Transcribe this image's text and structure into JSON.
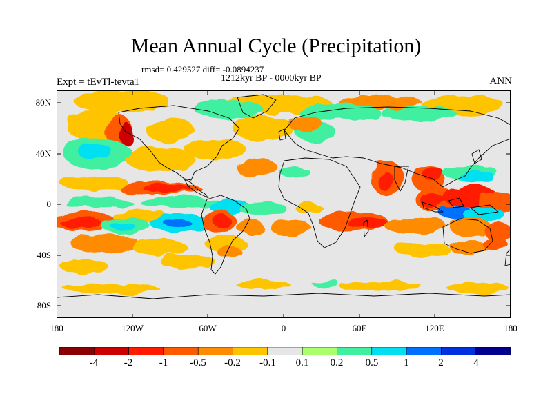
{
  "plot": {
    "title": "Mean Annual Cycle (Precipitation)",
    "stats": "rmsd= 0.429527 diff= -0.0894237",
    "period": "1212kyr BP - 0000kyr BP",
    "experiment": "Expt = tEvTl-tevta1",
    "season": "ANN"
  },
  "axes": {
    "lat_labels": [
      "80N",
      "40N",
      "0",
      "40S",
      "80S"
    ],
    "lon_labels": [
      "180",
      "120W",
      "60W",
      "0",
      "60E",
      "120E",
      "180"
    ]
  },
  "colorbar": {
    "labels": [
      "-4",
      "-2",
      "-1",
      "-0.5",
      "-0.2",
      "-0.1",
      "0.1",
      "0.2",
      "0.5",
      "1",
      "2",
      "4"
    ],
    "colors": [
      "#8b0000",
      "#cc0000",
      "#ff1a00",
      "#ff5a00",
      "#ff8c00",
      "#ffc400",
      "#e6e6e6",
      "#aaff6e",
      "#40f0a0",
      "#00e0f0",
      "#0070ff",
      "#0030e0",
      "#000090"
    ]
  },
  "legend_colors": {
    "land_outline": "#000000",
    "no_change": "#e6e6e6"
  }
}
